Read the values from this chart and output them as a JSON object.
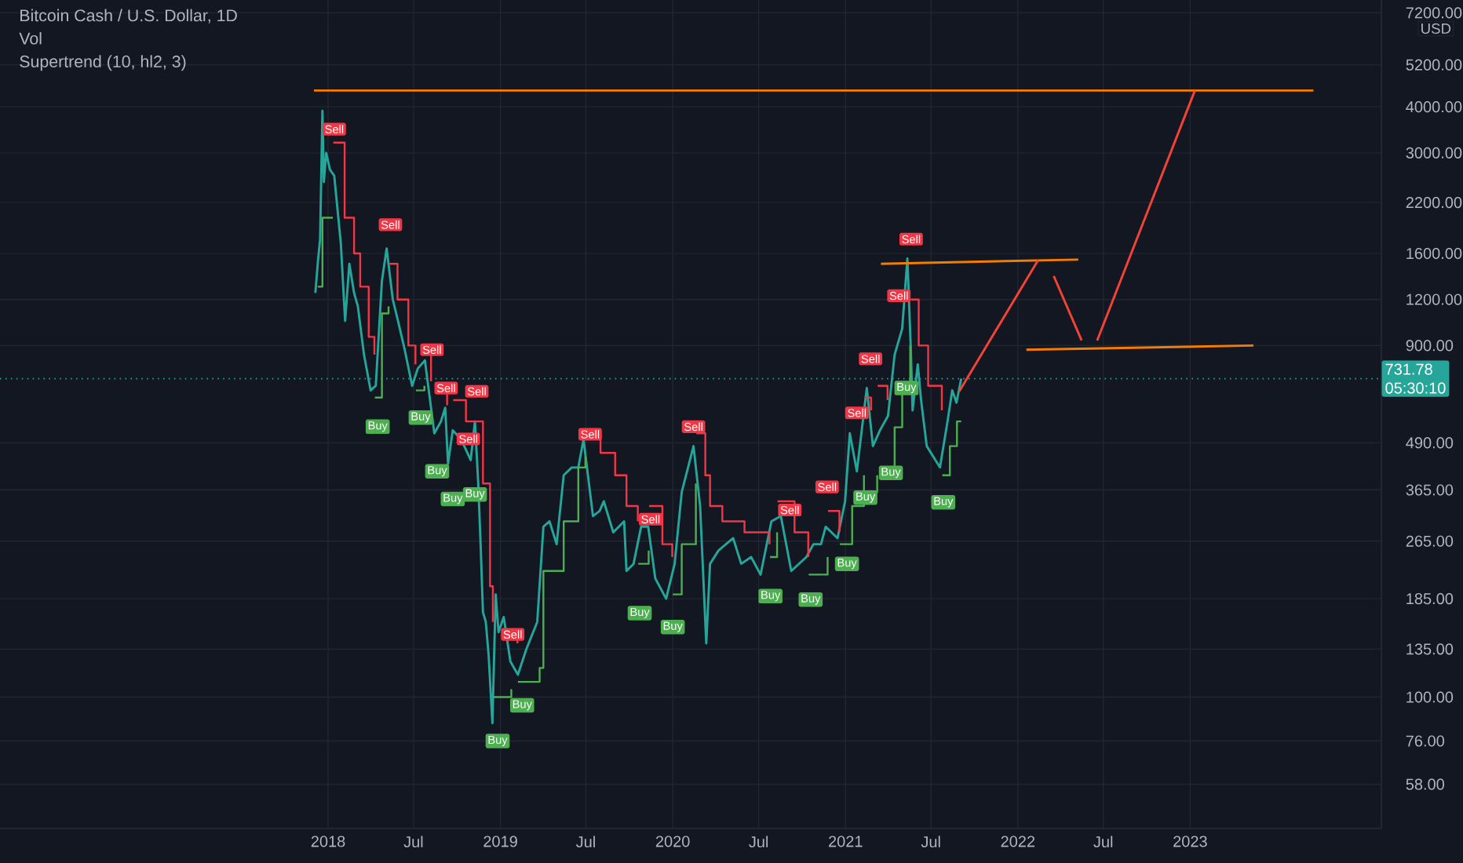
{
  "chart_data": {
    "type": "line",
    "title": "Bitcoin Cash / U.S. Dollar, 1D",
    "annotations": [
      "Vol",
      "Supertrend (10, hl2, 3)",
      "USD",
      "05:30:10"
    ],
    "log": true,
    "grid": true,
    "xlim": [
      "2016-02-06",
      "2024-02-10"
    ],
    "ylim": [
      44,
      7800
    ],
    "xticks": [
      "2018",
      {
        "value": "2018-07",
        "label": "Jul"
      },
      "2019",
      {
        "value": "2019-07",
        "label": "Jul"
      },
      "2020",
      {
        "value": "2020-07",
        "label": "Jul"
      },
      "2021",
      {
        "value": "2021-07",
        "label": "Jul"
      },
      "2022",
      {
        "value": "2022-07",
        "label": "Jul"
      },
      "2023"
    ],
    "yticks": [
      {
        "value": 58,
        "label": "58.00"
      },
      {
        "value": 76,
        "label": "76.00"
      },
      {
        "value": 100,
        "label": "100.00"
      },
      {
        "value": 135,
        "label": "135.00"
      },
      {
        "value": 185,
        "label": "185.00"
      },
      {
        "value": 265,
        "label": "265.00"
      },
      {
        "value": 365,
        "label": "365.00"
      },
      {
        "value": 490,
        "label": "490.00"
      },
      {
        "value": 900,
        "label": "900.00"
      },
      {
        "value": 1200,
        "label": "1200.00"
      },
      {
        "value": 1600,
        "label": "1600.00"
      },
      {
        "value": 2200,
        "label": "2200.00"
      },
      {
        "value": 3000,
        "label": "3000.00"
      },
      {
        "value": 4000,
        "label": "4000.00"
      },
      {
        "value": 5200,
        "label": "5200.00"
      },
      {
        "value": 7200,
        "label": "7200.00"
      }
    ],
    "ref_lines": [
      {
        "axis": "y",
        "value": 731.78,
        "label": "731.78",
        "color": "#26a69a",
        "line_style": "dotted"
      }
    ],
    "series": [
      {
        "color": "#26a69a",
        "x": [
          "2017-12-05",
          "2017-12-10",
          "2017-12-15",
          "2017-12-20",
          "2017-12-23",
          "2017-12-28",
          "2018-01-05",
          "2018-01-14",
          "2018-01-28",
          "2018-02-06",
          "2018-02-15",
          "2018-02-25",
          "2018-03-05",
          "2018-03-18",
          "2018-04-01",
          "2018-04-12",
          "2018-04-25",
          "2018-05-05",
          "2018-05-18",
          "2018-05-29",
          "2018-06-12",
          "2018-06-28",
          "2018-07-10",
          "2018-07-25",
          "2018-08-14",
          "2018-08-28",
          "2018-09-06",
          "2018-09-12",
          "2018-09-22",
          "2018-10-10",
          "2018-10-30",
          "2018-11-08",
          "2018-11-15",
          "2018-11-20",
          "2018-11-25",
          "2018-12-01",
          "2018-12-07",
          "2018-12-15",
          "2018-12-22",
          "2018-12-28",
          "2019-01-08",
          "2019-01-22",
          "2019-02-07",
          "2019-02-25",
          "2019-03-20",
          "2019-04-02",
          "2019-04-15",
          "2019-04-30",
          "2019-05-15",
          "2019-06-01",
          "2019-06-15",
          "2019-06-26",
          "2019-07-16",
          "2019-07-30",
          "2019-08-08",
          "2019-08-28",
          "2019-09-20",
          "2019-09-25",
          "2019-10-10",
          "2019-10-26",
          "2019-11-10",
          "2019-11-25",
          "2019-12-18",
          "2020-01-05",
          "2020-01-20",
          "2020-02-14",
          "2020-02-28",
          "2020-03-12",
          "2020-03-20",
          "2020-04-07",
          "2020-05-08",
          "2020-05-25",
          "2020-06-15",
          "2020-07-05",
          "2020-07-28",
          "2020-08-17",
          "2020-09-08",
          "2020-10-10",
          "2020-10-25",
          "2020-11-10",
          "2020-11-20",
          "2020-12-15",
          "2020-12-31",
          "2021-01-10",
          "2021-01-25",
          "2021-02-15",
          "2021-02-28",
          "2021-03-15",
          "2021-04-01",
          "2021-04-15",
          "2021-05-01",
          "2021-05-12",
          "2021-05-19",
          "2021-05-23",
          "2021-06-03",
          "2021-06-10",
          "2021-06-22",
          "2021-07-20",
          "2021-08-05",
          "2021-08-15",
          "2021-08-24",
          "2021-09-03"
        ],
        "values": [
          1250,
          1500,
          1750,
          3900,
          2500,
          3000,
          2700,
          2600,
          1700,
          1050,
          1500,
          1250,
          1150,
          850,
          680,
          700,
          1350,
          1650,
          1200,
          1050,
          880,
          700,
          780,
          820,
          520,
          560,
          610,
          430,
          530,
          500,
          440,
          560,
          380,
          260,
          170,
          160,
          130,
          85,
          190,
          150,
          165,
          125,
          115,
          135,
          160,
          290,
          300,
          260,
          400,
          420,
          420,
          500,
          310,
          320,
          340,
          280,
          300,
          220,
          230,
          290,
          290,
          210,
          185,
          230,
          360,
          480,
          330,
          140,
          230,
          250,
          270,
          230,
          240,
          215,
          300,
          310,
          220,
          240,
          260,
          260,
          290,
          270,
          340,
          520,
          410,
          690,
          480,
          530,
          580,
          850,
          1000,
          1550,
          900,
          600,
          800,
          640,
          480,
          420,
          560,
          680,
          630,
          731.78
        ]
      },
      {
        "type": "step",
        "color": "#f23645",
        "x": [
          "2018-01-12",
          "2018-02-05",
          "2018-02-25",
          "2018-03-10",
          "2018-03-28",
          "2018-04-09",
          "2018-04-10",
          "2018-05-10",
          "2018-05-28",
          "2018-06-20",
          "2018-07-05",
          "2018-07-06",
          "2018-07-25",
          "2018-08-07",
          "2018-08-08",
          "2018-08-21",
          "2018-09-10",
          "2018-09-11",
          "2018-09-23",
          "2018-10-20",
          "2018-11-25",
          "2018-12-10",
          "2018-12-16",
          "2018-12-17",
          "2019-01-25",
          "2019-02-06",
          "2019-02-07",
          "2019-07-01",
          "2019-08-01",
          "2019-09-01",
          "2019-09-25",
          "2019-10-19",
          "2019-10-20",
          "2019-11-12",
          "2019-12-10",
          "2019-12-31",
          "2020-01-01",
          "2020-02-20",
          "2020-03-10",
          "2020-03-20",
          "2020-04-15",
          "2020-06-01",
          "2020-07-24",
          "2020-07-25",
          "2020-08-10",
          "2020-09-15",
          "2020-10-14",
          "2020-10-15",
          "2020-11-25",
          "2020-12-19",
          "2020-12-20",
          "2021-02-10",
          "2021-02-24",
          "2021-02-25",
          "2021-03-10",
          "2021-03-31",
          "2021-04-01",
          "2021-05-19",
          "2021-06-05",
          "2021-06-25",
          "2021-07-24"
        ],
        "values": [
          3200,
          2000,
          1600,
          1300,
          950,
          850,
          null,
          1500,
          1200,
          900,
          800,
          null,
          900,
          720,
          null,
          700,
          620,
          null,
          640,
          560,
          380,
          200,
          160,
          null,
          150,
          140,
          null,
          530,
          460,
          400,
          330,
          300,
          null,
          330,
          260,
          240,
          null,
          520,
          400,
          330,
          300,
          280,
          260,
          null,
          340,
          280,
          240,
          null,
          320,
          280,
          null,
          650,
          600,
          null,
          700,
          640,
          null,
          1200,
          900,
          700,
          600
        ]
      },
      {
        "type": "step",
        "color": "#4caf50",
        "x": [
          "2017-12-10",
          "2017-12-20",
          "2018-01-11",
          "2018-01-12",
          "2018-04-10",
          "2018-04-25",
          "2018-05-09",
          "2018-05-10",
          "2018-07-06",
          "2018-07-24",
          "2018-07-25",
          "2018-12-17",
          "2019-01-24",
          "2019-01-25",
          "2019-02-07",
          "2019-03-25",
          "2019-04-02",
          "2019-05-15",
          "2019-06-15",
          "2019-06-30",
          "2019-07-01",
          "2019-10-20",
          "2019-11-11",
          "2019-11-12",
          "2020-01-01",
          "2020-01-20",
          "2020-02-19",
          "2020-02-20",
          "2020-07-25",
          "2020-08-09",
          "2020-08-10",
          "2020-10-15",
          "2020-11-24",
          "2020-11-25",
          "2020-12-20",
          "2021-01-15",
          "2021-02-09",
          "2021-02-10",
          "2021-02-25",
          "2021-03-09",
          "2021-03-10",
          "2021-04-01",
          "2021-04-15",
          "2021-05-01",
          "2021-05-18",
          "2021-05-19",
          "2021-07-25",
          "2021-08-10",
          "2021-08-25",
          "2021-09-03"
        ],
        "values": [
          1300,
          2000,
          2000,
          null,
          650,
          1100,
          1150,
          null,
          680,
          700,
          null,
          100,
          105,
          null,
          110,
          120,
          220,
          300,
          420,
          450,
          null,
          230,
          250,
          null,
          190,
          260,
          380,
          null,
          240,
          280,
          null,
          215,
          240,
          null,
          260,
          330,
          400,
          null,
          360,
          400,
          null,
          400,
          540,
          700,
          900,
          null,
          400,
          480,
          560,
          560
        ]
      },
      {
        "type": "scatter",
        "name": "Sell",
        "color": "#f23645",
        "marker": "square",
        "x": [
          "2018-01-14",
          "2018-05-13",
          "2018-08-09",
          "2018-09-08",
          "2018-10-25",
          "2018-11-12",
          "2019-01-27",
          "2019-07-10",
          "2019-11-15",
          "2020-02-14",
          "2020-09-05",
          "2020-11-23",
          "2021-01-25",
          "2021-02-23",
          "2021-04-24",
          "2021-05-20"
        ],
        "values": [
          3480,
          1915,
          877,
          690,
          502,
          676,
          148,
          517,
          304,
          542,
          322,
          372,
          591,
          828,
          1229,
          1750
        ]
      },
      {
        "type": "scatter",
        "name": "Buy",
        "color": "#4caf50",
        "marker": "square",
        "x": [
          "2018-04-16",
          "2018-07-16",
          "2018-08-20",
          "2018-09-22",
          "2018-11-08",
          "2018-12-26",
          "2019-02-16",
          "2019-10-23",
          "2020-01-01",
          "2020-07-26",
          "2020-10-19",
          "2021-01-04",
          "2021-02-12",
          "2021-04-07",
          "2021-05-10",
          "2021-07-27"
        ],
        "values": [
          542,
          574,
          410,
          345,
          355,
          76,
          95,
          169,
          155,
          188,
          184,
          230,
          348,
          406,
          690,
          338
        ]
      },
      {
        "type": "line",
        "color": "#f57c00",
        "x": [
          "2017-12-02",
          "2023-09-19"
        ],
        "values": [
          4430,
          4430
        ]
      },
      {
        "type": "line",
        "color": "#f57c00",
        "x": [
          "2021-03-17",
          "2022-05-09"
        ],
        "values": [
          1500,
          1540
        ]
      },
      {
        "type": "line",
        "color": "#f57c00",
        "x": [
          "2022-01-19",
          "2023-05-15"
        ],
        "values": [
          877,
          900
        ]
      },
      {
        "type": "line",
        "color": "#f44336",
        "x": [
          "2021-08-30",
          "2022-02-13"
        ],
        "values": [
          676,
          1535
        ]
      },
      {
        "type": "line",
        "color": "#f44336",
        "x": [
          "2022-03-18",
          "2022-05-16"
        ],
        "values": [
          1390,
          929
        ]
      },
      {
        "type": "line",
        "color": "#f44336",
        "x": [
          "2022-06-18",
          "2023-01-11"
        ],
        "values": [
          929,
          4430
        ]
      }
    ]
  }
}
